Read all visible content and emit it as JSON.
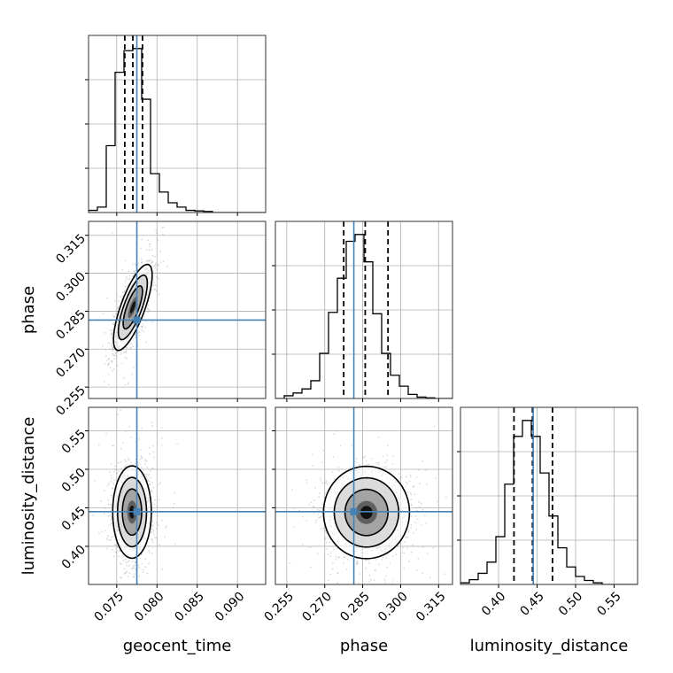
{
  "chart_data": {
    "type": "corner",
    "parameters": [
      {
        "name": "geocent_time",
        "label": "geocent_time",
        "range": [
          0.0715,
          0.0935
        ],
        "ticks": [
          0.075,
          0.08,
          0.085,
          0.09
        ],
        "tick_labels": [
          "0.075",
          "0.080",
          "0.085",
          "0.090"
        ],
        "truth": 0.0775,
        "quantiles": [
          0.076,
          0.077,
          0.0782
        ],
        "histogram": {
          "edges_start": 0.0715,
          "bin_width": 0.0011,
          "counts": [
            0.02,
            0.05,
            0.62,
            1.3,
            1.5,
            1.52,
            1.05,
            0.36,
            0.19,
            0.09,
            0.05,
            0.02,
            0.015,
            0.01,
            0,
            0,
            0,
            0,
            0,
            0
          ]
        }
      },
      {
        "name": "phase",
        "label": "phase",
        "range": [
          0.2505,
          0.3205
        ],
        "ticks": [
          0.255,
          0.27,
          0.285,
          0.3,
          0.315
        ],
        "tick_labels": [
          "0.255",
          "0.270",
          "0.285",
          "0.300",
          "0.315"
        ],
        "truth": 0.2815,
        "quantiles": [
          0.2775,
          0.286,
          0.295
        ],
        "histogram": {
          "edges_start": 0.2505,
          "bin_width": 0.0035,
          "counts": [
            0.0,
            0.02,
            0.04,
            0.07,
            0.13,
            0.33,
            0.63,
            0.88,
            1.15,
            1.2,
            1.0,
            0.62,
            0.33,
            0.17,
            0.09,
            0.03,
            0.01,
            0.005,
            0,
            0
          ]
        }
      },
      {
        "name": "luminosity_distance",
        "label": "luminosity_distance",
        "range": [
          0.3505,
          0.5805
        ],
        "ticks": [
          0.4,
          0.45,
          0.5,
          0.55
        ],
        "tick_labels": [
          "0.40",
          "0.45",
          "0.50",
          "0.55"
        ],
        "truth": 0.445,
        "quantiles": [
          0.42,
          0.444,
          0.47
        ],
        "histogram": {
          "edges_start": 0.3505,
          "bin_width": 0.0115,
          "counts": [
            0.01,
            0.03,
            0.07,
            0.14,
            0.3,
            0.63,
            0.93,
            1.03,
            0.93,
            0.7,
            0.43,
            0.23,
            0.11,
            0.05,
            0.025,
            0.01,
            0,
            0,
            0,
            0
          ]
        }
      }
    ],
    "joint": [
      {
        "x": "geocent_time",
        "y": "phase",
        "center": [
          0.077,
          0.2865
        ],
        "sigma": [
          0.0012,
          0.0085
        ],
        "corr": 0.75,
        "levels_sigma": [
          0.5,
          1.0,
          1.5,
          2.0
        ]
      },
      {
        "x": "geocent_time",
        "y": "luminosity_distance",
        "center": [
          0.0769,
          0.4445
        ],
        "sigma": [
          0.0012,
          0.03
        ],
        "corr": 0.0,
        "levels_sigma": [
          0.5,
          1.0,
          1.5,
          2.0
        ]
      },
      {
        "x": "phase",
        "y": "luminosity_distance",
        "center": [
          0.2865,
          0.444
        ],
        "sigma": [
          0.0085,
          0.03
        ],
        "corr": 0.0,
        "levels_sigma": [
          0.5,
          1.0,
          1.5,
          2.0
        ]
      }
    ]
  }
}
